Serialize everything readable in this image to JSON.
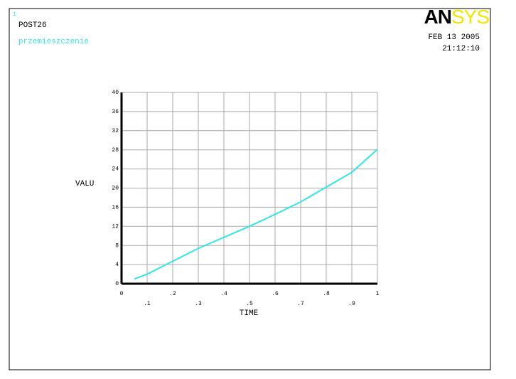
{
  "chart_data": {
    "type": "line",
    "window_number": "1",
    "program": "POST26",
    "title": "przemieszczenie",
    "logo": {
      "dark": "AN",
      "light": "SYS"
    },
    "date": "FEB 13 2005",
    "time": "21:12:10",
    "xlabel": "TIME",
    "ylabel": "VALU",
    "x": [
      0.05,
      0.1,
      0.2,
      0.3,
      0.4,
      0.5,
      0.6,
      0.7,
      0.8,
      0.9,
      1.0
    ],
    "values": [
      1.0,
      2.0,
      4.7,
      7.4,
      9.7,
      12.0,
      14.5,
      17.1,
      20.2,
      23.3,
      28.1
    ],
    "color": "#2ee6e6",
    "xlim": [
      0,
      1
    ],
    "ylim": [
      0,
      40
    ],
    "xticks": [
      0,
      {
        "value": 0.1,
        "label": ".1"
      },
      {
        "value": 0.2,
        "label": ".2"
      },
      {
        "value": 0.3,
        "label": ".3"
      },
      {
        "value": 0.4,
        "label": ".4"
      },
      {
        "value": 0.5,
        "label": ".5"
      },
      {
        "value": 0.6,
        "label": ".6"
      },
      {
        "value": 0.7,
        "label": ".7"
      },
      {
        "value": 0.8,
        "label": ".8"
      },
      {
        "value": 0.9,
        "label": ".9"
      },
      1
    ],
    "yticks": [
      0,
      4,
      8,
      12,
      16,
      20,
      24,
      28,
      32,
      36,
      40
    ],
    "grid": true
  }
}
